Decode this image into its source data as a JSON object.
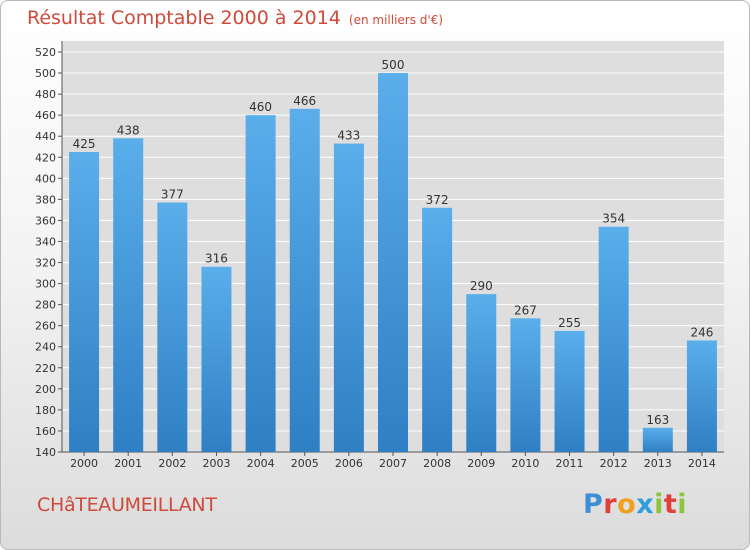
{
  "header": {
    "title": "Résultat Comptable 2000 à 2014",
    "subtitle": "(en milliers d'€)"
  },
  "footer": {
    "town": "CHâTEAUMEILLANT",
    "logo": [
      "P",
      "r",
      "o",
      "x",
      "i",
      "t",
      "i"
    ],
    "logo_colors": [
      "#3c8fd6",
      "#e0403a",
      "#f0a020",
      "#2f9fdc",
      "#8bc53f",
      "#e0403a",
      "#8bc53f"
    ]
  },
  "colors": {
    "bar_top": "#5aaeea",
    "bar_bottom": "#2f7fc4",
    "title": "#cf4a3a"
  },
  "chart_data": {
    "type": "bar",
    "categories": [
      "2000",
      "2001",
      "2002",
      "2003",
      "2004",
      "2005",
      "2006",
      "2007",
      "2008",
      "2009",
      "2010",
      "2011",
      "2012",
      "2013",
      "2014"
    ],
    "values": [
      425,
      438,
      377,
      316,
      460,
      466,
      433,
      500,
      372,
      290,
      267,
      255,
      354,
      163,
      246
    ],
    "ylim": [
      140,
      520
    ],
    "yticks": [
      140,
      160,
      180,
      200,
      220,
      240,
      260,
      280,
      300,
      320,
      340,
      360,
      380,
      400,
      420,
      440,
      460,
      480,
      500,
      520
    ],
    "grid": true,
    "legend": "none",
    "data_labels": true
  }
}
